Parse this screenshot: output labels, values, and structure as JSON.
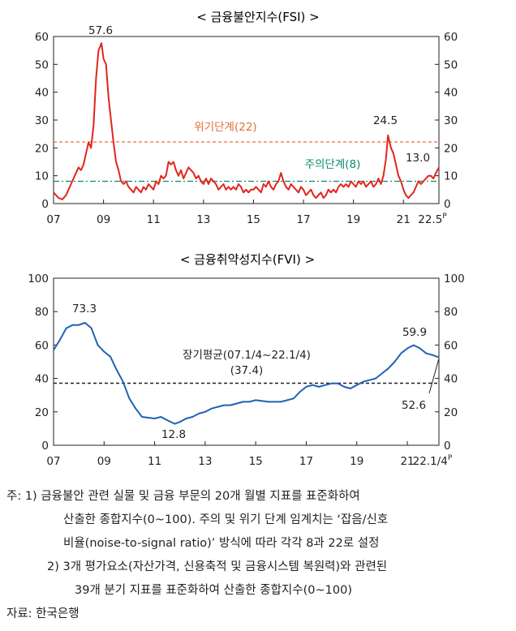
{
  "chart_data": [
    {
      "type": "line",
      "title": "< 금융불안지수(FSI) >",
      "ylim": [
        0,
        60
      ],
      "yticks": [
        "0",
        "10",
        "20",
        "30",
        "40",
        "50",
        "60"
      ],
      "xlim": [
        2007,
        2022.42
      ],
      "xticks": [
        {
          "x": 2007,
          "label": "07"
        },
        {
          "x": 2009,
          "label": "09"
        },
        {
          "x": 2011,
          "label": "11"
        },
        {
          "x": 2013,
          "label": "13"
        },
        {
          "x": 2015,
          "label": "15"
        },
        {
          "x": 2017,
          "label": "17"
        },
        {
          "x": 2019,
          "label": "19"
        },
        {
          "x": 2021,
          "label": "21"
        },
        {
          "x": 2022.42,
          "label": "22.5",
          "sup": "P"
        }
      ],
      "series": [
        {
          "color": "#e1261c",
          "points": [
            [
              2007.0,
              4
            ],
            [
              2007.1,
              3
            ],
            [
              2007.2,
              2
            ],
            [
              2007.35,
              1.5
            ],
            [
              2007.5,
              3
            ],
            [
              2007.6,
              5
            ],
            [
              2007.75,
              8
            ],
            [
              2007.9,
              11
            ],
            [
              2008.0,
              13
            ],
            [
              2008.1,
              12
            ],
            [
              2008.2,
              14
            ],
            [
              2008.3,
              18
            ],
            [
              2008.4,
              22
            ],
            [
              2008.5,
              20
            ],
            [
              2008.6,
              28
            ],
            [
              2008.7,
              45
            ],
            [
              2008.8,
              55
            ],
            [
              2008.92,
              57.6
            ],
            [
              2009.0,
              52
            ],
            [
              2009.1,
              50
            ],
            [
              2009.2,
              38
            ],
            [
              2009.3,
              30
            ],
            [
              2009.4,
              22
            ],
            [
              2009.5,
              15
            ],
            [
              2009.6,
              12
            ],
            [
              2009.7,
              8
            ],
            [
              2009.8,
              7
            ],
            [
              2009.9,
              8
            ],
            [
              2010.0,
              6
            ],
            [
              2010.1,
              5
            ],
            [
              2010.2,
              4
            ],
            [
              2010.3,
              6
            ],
            [
              2010.4,
              5
            ],
            [
              2010.5,
              4
            ],
            [
              2010.6,
              6
            ],
            [
              2010.7,
              5
            ],
            [
              2010.8,
              7
            ],
            [
              2010.9,
              6
            ],
            [
              2011.0,
              5
            ],
            [
              2011.1,
              8
            ],
            [
              2011.2,
              7
            ],
            [
              2011.3,
              10
            ],
            [
              2011.4,
              9
            ],
            [
              2011.5,
              10
            ],
            [
              2011.6,
              15
            ],
            [
              2011.7,
              14
            ],
            [
              2011.8,
              15
            ],
            [
              2011.9,
              12
            ],
            [
              2012.0,
              10
            ],
            [
              2012.1,
              12
            ],
            [
              2012.2,
              9
            ],
            [
              2012.3,
              11
            ],
            [
              2012.4,
              13
            ],
            [
              2012.5,
              12
            ],
            [
              2012.6,
              11
            ],
            [
              2012.7,
              9
            ],
            [
              2012.8,
              10
            ],
            [
              2012.9,
              8
            ],
            [
              2013.0,
              7
            ],
            [
              2013.1,
              9
            ],
            [
              2013.2,
              7
            ],
            [
              2013.3,
              9
            ],
            [
              2013.4,
              8
            ],
            [
              2013.5,
              7
            ],
            [
              2013.6,
              5
            ],
            [
              2013.7,
              6
            ],
            [
              2013.8,
              7
            ],
            [
              2013.9,
              5
            ],
            [
              2014.0,
              6
            ],
            [
              2014.1,
              5
            ],
            [
              2014.2,
              6
            ],
            [
              2014.3,
              5
            ],
            [
              2014.4,
              7
            ],
            [
              2014.5,
              6
            ],
            [
              2014.6,
              4
            ],
            [
              2014.7,
              5
            ],
            [
              2014.8,
              4
            ],
            [
              2014.9,
              5
            ],
            [
              2015.0,
              5
            ],
            [
              2015.1,
              6
            ],
            [
              2015.2,
              5
            ],
            [
              2015.3,
              4
            ],
            [
              2015.4,
              7
            ],
            [
              2015.5,
              6
            ],
            [
              2015.6,
              8
            ],
            [
              2015.7,
              6
            ],
            [
              2015.8,
              5
            ],
            [
              2015.9,
              7
            ],
            [
              2016.0,
              8
            ],
            [
              2016.1,
              11
            ],
            [
              2016.2,
              8
            ],
            [
              2016.3,
              6
            ],
            [
              2016.4,
              5
            ],
            [
              2016.5,
              7
            ],
            [
              2016.6,
              6
            ],
            [
              2016.7,
              5
            ],
            [
              2016.8,
              4
            ],
            [
              2016.9,
              6
            ],
            [
              2017.0,
              5
            ],
            [
              2017.1,
              3
            ],
            [
              2017.2,
              4
            ],
            [
              2017.3,
              5
            ],
            [
              2017.4,
              3
            ],
            [
              2017.5,
              2
            ],
            [
              2017.6,
              3
            ],
            [
              2017.7,
              4
            ],
            [
              2017.8,
              2
            ],
            [
              2017.9,
              3
            ],
            [
              2018.0,
              5
            ],
            [
              2018.1,
              4
            ],
            [
              2018.2,
              5
            ],
            [
              2018.3,
              4
            ],
            [
              2018.4,
              6
            ],
            [
              2018.5,
              7
            ],
            [
              2018.6,
              6
            ],
            [
              2018.7,
              7
            ],
            [
              2018.8,
              6
            ],
            [
              2018.9,
              8
            ],
            [
              2019.0,
              7
            ],
            [
              2019.1,
              6
            ],
            [
              2019.2,
              8
            ],
            [
              2019.3,
              7
            ],
            [
              2019.4,
              8
            ],
            [
              2019.5,
              6
            ],
            [
              2019.6,
              7
            ],
            [
              2019.7,
              8
            ],
            [
              2019.8,
              6
            ],
            [
              2019.9,
              7
            ],
            [
              2020.0,
              9
            ],
            [
              2020.1,
              7
            ],
            [
              2020.2,
              10
            ],
            [
              2020.3,
              16
            ],
            [
              2020.38,
              24.5
            ],
            [
              2020.5,
              20
            ],
            [
              2020.6,
              18
            ],
            [
              2020.7,
              14
            ],
            [
              2020.8,
              10
            ],
            [
              2020.9,
              8
            ],
            [
              2021.0,
              5
            ],
            [
              2021.1,
              3
            ],
            [
              2021.2,
              2
            ],
            [
              2021.3,
              3
            ],
            [
              2021.4,
              4
            ],
            [
              2021.5,
              6
            ],
            [
              2021.6,
              8
            ],
            [
              2021.7,
              7
            ],
            [
              2021.8,
              8
            ],
            [
              2021.9,
              9
            ],
            [
              2022.0,
              10
            ],
            [
              2022.1,
              10
            ],
            [
              2022.2,
              9
            ],
            [
              2022.3,
              11
            ],
            [
              2022.42,
              13
            ]
          ]
        }
      ],
      "reference_lines": [
        {
          "y": 22,
          "label": "위기단계(22)",
          "color": "#e36f3c"
        },
        {
          "y": 8,
          "label": "주의단계(8)",
          "color": "#0b8a6e"
        }
      ],
      "annotations": [
        "57.6",
        "24.5",
        "13.0"
      ]
    },
    {
      "type": "line",
      "title": "< 금융취약성지수(FVI) >",
      "ylim": [
        0,
        100
      ],
      "yticks": [
        "0",
        "20",
        "40",
        "60",
        "80",
        "100"
      ],
      "xlim": [
        2007,
        2022.25
      ],
      "xticks": [
        {
          "x": 2007,
          "label": "07"
        },
        {
          "x": 2009,
          "label": "09"
        },
        {
          "x": 2011,
          "label": "11"
        },
        {
          "x": 2013,
          "label": "13"
        },
        {
          "x": 2015,
          "label": "15"
        },
        {
          "x": 2017,
          "label": "17"
        },
        {
          "x": 2019,
          "label": "19"
        },
        {
          "x": 2021,
          "label": "21"
        },
        {
          "x": 2022.25,
          "label": "22.1/4",
          "sup": "P"
        }
      ],
      "series": [
        {
          "color": "#1f61b5",
          "points": [
            [
              2007.0,
              57
            ],
            [
              2007.25,
              63
            ],
            [
              2007.5,
              70
            ],
            [
              2007.75,
              72
            ],
            [
              2008.0,
              72
            ],
            [
              2008.25,
              73.3
            ],
            [
              2008.5,
              70
            ],
            [
              2008.75,
              60
            ],
            [
              2009.0,
              56
            ],
            [
              2009.25,
              53
            ],
            [
              2009.5,
              45
            ],
            [
              2009.75,
              38
            ],
            [
              2010.0,
              28
            ],
            [
              2010.25,
              22
            ],
            [
              2010.5,
              17
            ],
            [
              2010.75,
              16.5
            ],
            [
              2011.0,
              16
            ],
            [
              2011.25,
              17
            ],
            [
              2011.5,
              15
            ],
            [
              2011.8,
              12.8
            ],
            [
              2012.0,
              14
            ],
            [
              2012.25,
              16
            ],
            [
              2012.5,
              17
            ],
            [
              2012.75,
              19
            ],
            [
              2013.0,
              20
            ],
            [
              2013.25,
              22
            ],
            [
              2013.5,
              23
            ],
            [
              2013.75,
              24
            ],
            [
              2014.0,
              24
            ],
            [
              2014.25,
              25
            ],
            [
              2014.5,
              26
            ],
            [
              2014.75,
              26
            ],
            [
              2015.0,
              27
            ],
            [
              2015.25,
              26.5
            ],
            [
              2015.5,
              26
            ],
            [
              2015.75,
              26
            ],
            [
              2016.0,
              26
            ],
            [
              2016.25,
              27
            ],
            [
              2016.5,
              28
            ],
            [
              2016.75,
              32
            ],
            [
              2017.0,
              35
            ],
            [
              2017.25,
              36
            ],
            [
              2017.5,
              35
            ],
            [
              2017.75,
              36
            ],
            [
              2018.0,
              37
            ],
            [
              2018.25,
              37
            ],
            [
              2018.5,
              35
            ],
            [
              2018.75,
              34
            ],
            [
              2019.0,
              36
            ],
            [
              2019.25,
              38
            ],
            [
              2019.5,
              39
            ],
            [
              2019.75,
              40
            ],
            [
              2020.0,
              43
            ],
            [
              2020.25,
              46
            ],
            [
              2020.5,
              50
            ],
            [
              2020.75,
              55
            ],
            [
              2021.0,
              58
            ],
            [
              2021.25,
              59.9
            ],
            [
              2021.5,
              58
            ],
            [
              2021.75,
              55
            ],
            [
              2022.0,
              54
            ],
            [
              2022.25,
              52.6
            ]
          ]
        }
      ],
      "reference_lines": [
        {
          "y": 37.4,
          "label": "장기평균(07.1/4~22.1/4)",
          "label2": "(37.4)",
          "color": "#231f20"
        }
      ],
      "annotations": [
        "73.3",
        "12.8",
        "59.9",
        "52.6"
      ]
    }
  ],
  "notes": {
    "line1": "주: 1) 금융불안 관련 실물 및 금융 부문의 20개 월별 지표를 표준화하여",
    "line2": "산출한 종합지수(0~100). 주의 및 위기 단계 임계치는 ‘잡음/신호",
    "line3": "비율(noise-to-signal ratio)’ 방식에 따라 각각 8과 22로 설정",
    "line4": "2) 3개 평가요소(자산가격, 신용축적 및 금융시스템 복원력)와 관련된",
    "line5": "39개 분기 지표를 표준화하여 산출한 종합지수(0~100)",
    "source": "자료: 한국은행"
  }
}
